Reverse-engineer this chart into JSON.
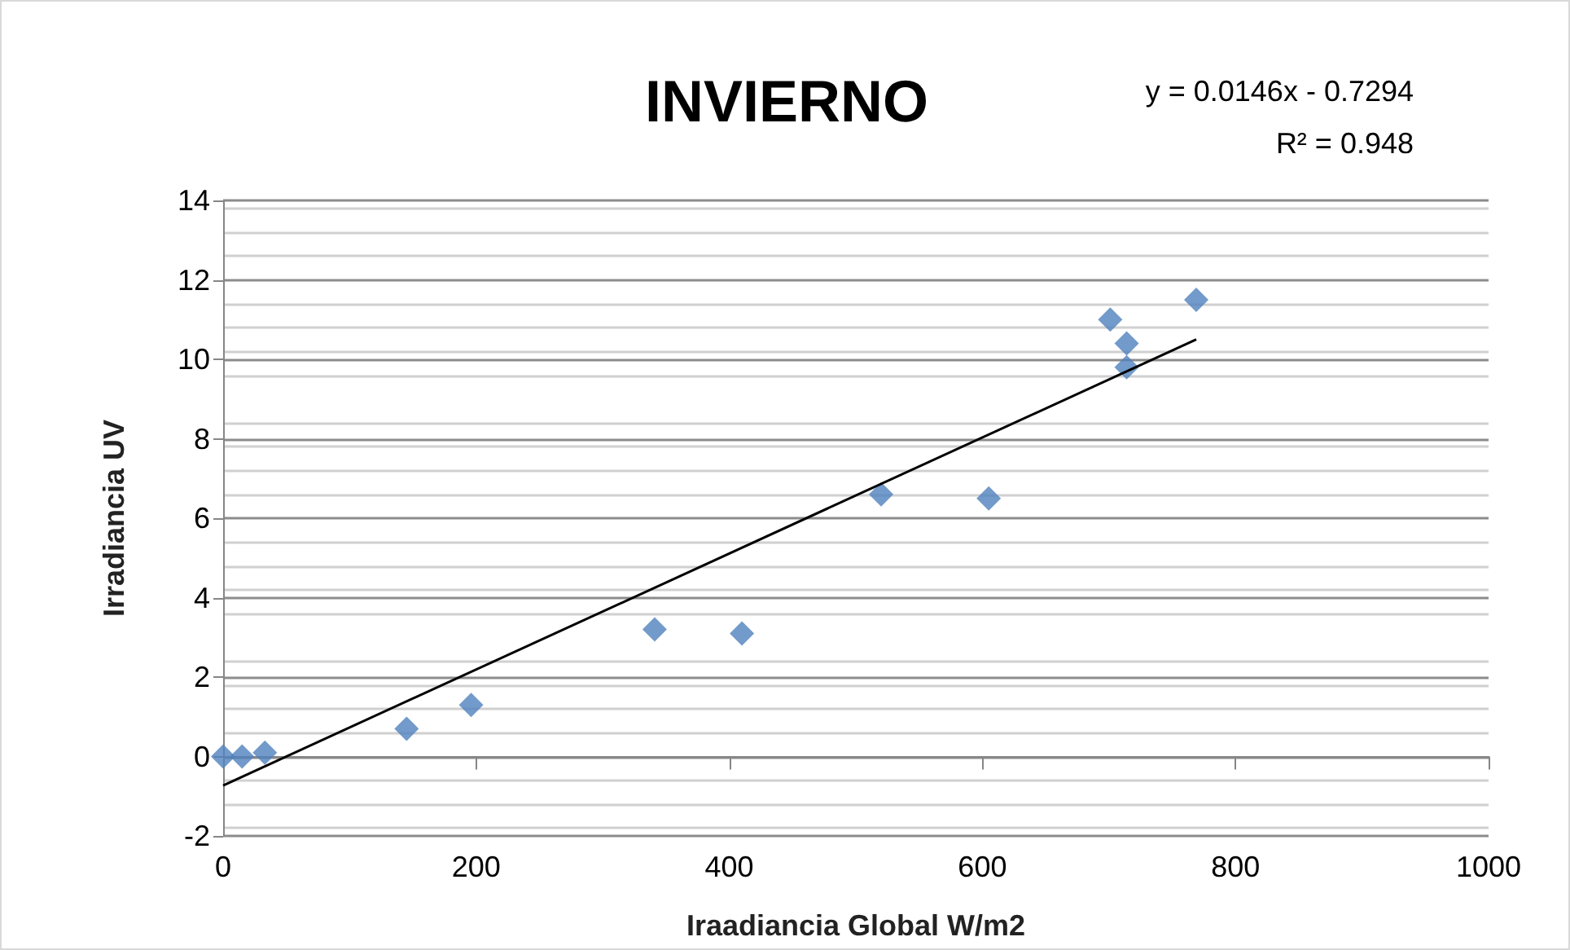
{
  "chart_data": {
    "type": "scatter",
    "title": "INVIERNO",
    "xlabel": "Iraadiancia Global W/m2",
    "ylabel": "Irradiancia UV",
    "annotations": [
      "y = 0.0146x - 0.7294",
      "R² = 0.948"
    ],
    "series": [
      {
        "color": "#4f81bd",
        "marker": "diamond",
        "x": [
          0,
          15,
          33,
          145,
          196,
          341,
          410,
          520,
          605,
          701,
          714,
          714,
          769
        ],
        "values": [
          0,
          0,
          0.1,
          0.7,
          1.3,
          3.2,
          3.1,
          6.6,
          6.5,
          11.0,
          10.4,
          9.8,
          11.5
        ]
      },
      {
        "type": "line",
        "color": "#000000",
        "marker": "none",
        "x": [
          0,
          769
        ],
        "values": [
          -0.73,
          10.5
        ]
      }
    ],
    "xlim": [
      0,
      1000
    ],
    "xticks": [
      0,
      200,
      400,
      600,
      800,
      1000
    ],
    "ylim": [
      -2,
      14
    ],
    "yticks": [
      -2,
      0,
      2,
      4,
      6,
      8,
      10,
      12,
      14
    ],
    "grid": "y"
  }
}
